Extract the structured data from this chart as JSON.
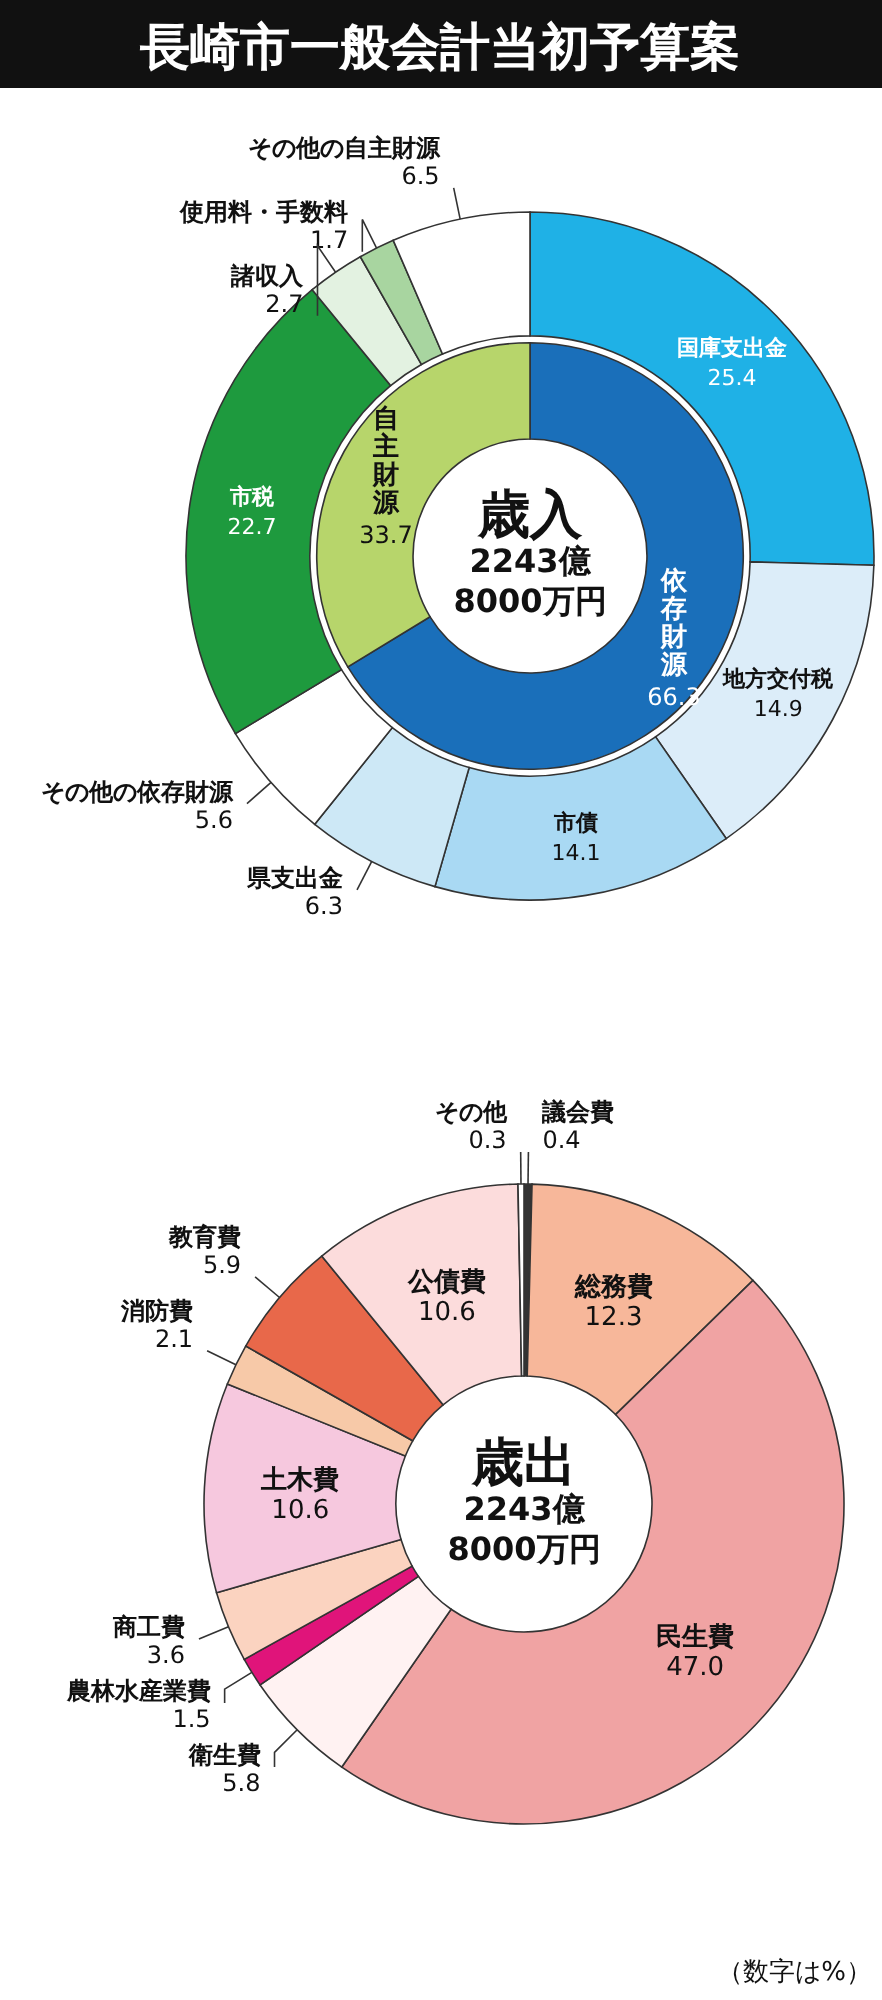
{
  "chart_data": [
    {
      "type": "donut",
      "title": "長崎市一般会計当初予算案",
      "annotations": [
        "歳入",
        "2243億",
        "8000万円"
      ],
      "categories": [
        "国庫支出金",
        "地方交付税",
        "市債",
        "県支出金",
        "その他の依存財源",
        "市税",
        "諸収入",
        "使用料・手数料",
        "その他の自主財源"
      ],
      "values": [
        25.4,
        14.9,
        14.1,
        6.3,
        5.6,
        22.7,
        2.7,
        1.7,
        6.5
      ],
      "value_labels": [
        "25.4",
        "14.9",
        "14.1",
        "6.3",
        "5.6",
        "22.7",
        "2.7",
        "1.7",
        "6.5"
      ],
      "colors": [
        "#1fb1e6",
        "#dcedf9",
        "#a9d9f3",
        "#cde8f6",
        "#ffffff",
        "#1e9a3e",
        "#e3f2e1",
        "#a8d5a0",
        "#ffffff"
      ]
    },
    {
      "type": "donut",
      "categories": [
        "依存財源",
        "自主財源"
      ],
      "values": [
        66.3,
        33.7
      ],
      "value_labels": [
        "66.3",
        "33.7"
      ],
      "colors": [
        "#1a6fba",
        "#b7d56b"
      ]
    },
    {
      "type": "donut",
      "annotations": [
        "歳出",
        "2243億",
        "8000万円",
        "（数字は%）"
      ],
      "categories": [
        "議会費",
        "総務費",
        "民生費",
        "衛生費",
        "農林水産業費",
        "商工費",
        "土木費",
        "消防費",
        "教育費",
        "公債費",
        "その他"
      ],
      "values": [
        0.4,
        12.3,
        47.0,
        5.8,
        1.5,
        3.6,
        10.6,
        2.1,
        5.9,
        10.6,
        0.3
      ],
      "value_labels": [
        "0.4",
        "12.3",
        "47.0",
        "5.8",
        "1.5",
        "3.6",
        "10.6",
        "2.1",
        "5.9",
        "10.6",
        "0.3"
      ],
      "colors": [
        "#333333",
        "#f7b79a",
        "#f0a3a3",
        "#fff2f2",
        "#e0147a",
        "#fbd3c0",
        "#f6c8de",
        "#f7c9a8",
        "#e8684a",
        "#fcdcdc",
        "#ffffff"
      ]
    }
  ]
}
